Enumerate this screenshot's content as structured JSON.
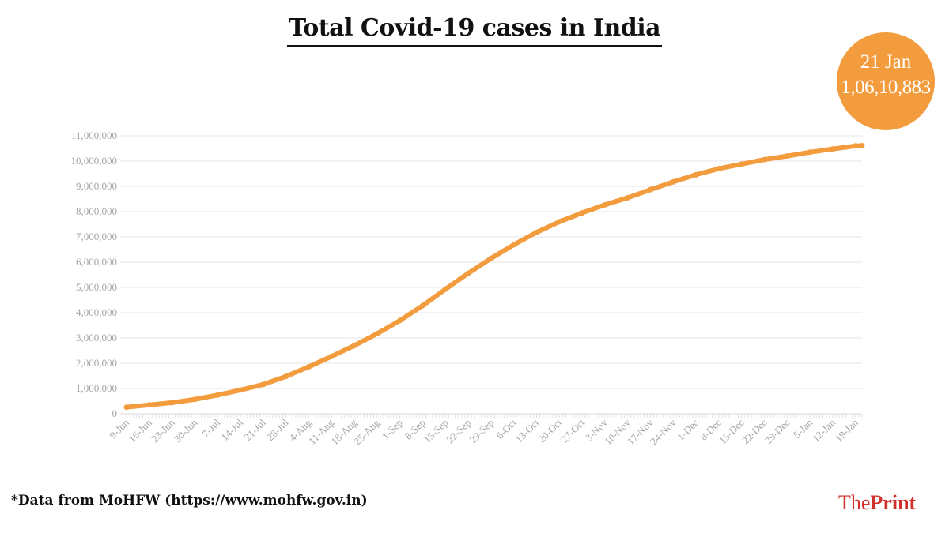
{
  "title": "Total Covid-19 cases in India",
  "badge": {
    "date": "21 Jan",
    "value": "1,06,10,883",
    "color": "#f39c3d"
  },
  "footnote": "*Data from MoHFW (https://www.mohfw.gov.in)",
  "logo": {
    "part1": "The",
    "part2": "Print",
    "color": "#d0312d"
  },
  "chart_data": {
    "type": "line",
    "title": "Total Covid-19 cases in India",
    "xlabel": "",
    "ylabel": "",
    "ylim": [
      0,
      11000000
    ],
    "yticks": [
      "0",
      "1,000,000",
      "2,000,000",
      "3,000,000",
      "4,000,000",
      "5,000,000",
      "6,000,000",
      "7,000,000",
      "8,000,000",
      "9,000,000",
      "10,000,000",
      "11,000,000"
    ],
    "xticks": [
      "9-Jun",
      "16-Jun",
      "23-Jun",
      "30-Jun",
      "7-Jul",
      "14-Jul",
      "21-Jul",
      "28-Jul",
      "4-Aug",
      "11-Aug",
      "18-Aug",
      "25-Aug",
      "1-Sep",
      "8-Sep",
      "15-Sep",
      "22-Sep",
      "29-Sep",
      "6-Oct",
      "13-Oct",
      "20-Oct",
      "27-Oct",
      "3-Nov",
      "10-Nov",
      "17-Nov",
      "24-Nov",
      "1-Dec",
      "8-Dec",
      "15-Dec",
      "22-Dec",
      "29-Dec",
      "5-Jan",
      "12-Jan",
      "19-Jan"
    ],
    "grid": true,
    "line_color": "#f39c3d",
    "series": [
      {
        "x": [
          "9-Jun",
          "16-Jun",
          "23-Jun",
          "30-Jun",
          "7-Jul",
          "14-Jul",
          "21-Jul",
          "28-Jul",
          "4-Aug",
          "11-Aug",
          "18-Aug",
          "25-Aug",
          "1-Sep",
          "8-Sep",
          "15-Sep",
          "22-Sep",
          "29-Sep",
          "6-Oct",
          "13-Oct",
          "20-Oct",
          "27-Oct",
          "3-Nov",
          "10-Nov",
          "17-Nov",
          "24-Nov",
          "1-Dec",
          "8-Dec",
          "15-Dec",
          "22-Dec",
          "29-Dec",
          "5-Jan",
          "12-Jan",
          "19-Jan",
          "21-Jan"
        ],
        "values": [
          260000,
          350000,
          440000,
          570000,
          740000,
          940000,
          1160000,
          1480000,
          1860000,
          2270000,
          2700000,
          3170000,
          3690000,
          4280000,
          4930000,
          5560000,
          6150000,
          6690000,
          7180000,
          7600000,
          7950000,
          8270000,
          8550000,
          8870000,
          9180000,
          9460000,
          9700000,
          9880000,
          10060000,
          10200000,
          10350000,
          10480000,
          10600000,
          10610883
        ]
      }
    ]
  }
}
